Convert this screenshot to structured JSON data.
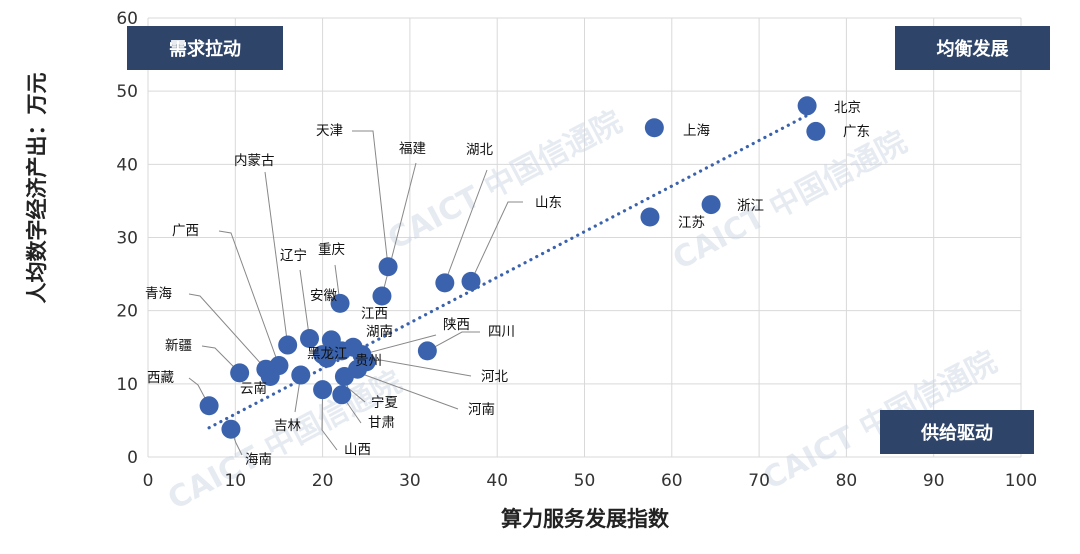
{
  "chart_data": {
    "type": "scatter",
    "xlabel": "算力服务发展指数",
    "ylabel": "人均数字经济产出：万元",
    "xlim": [
      0,
      100
    ],
    "ylim": [
      0,
      60
    ],
    "x_ticks": [
      0,
      10,
      20,
      30,
      40,
      50,
      60,
      70,
      80,
      90,
      100
    ],
    "y_ticks": [
      0,
      10,
      20,
      30,
      40,
      50,
      60
    ],
    "grid": true,
    "point_color": "#3b63ad",
    "trendline": {
      "style": "dotted",
      "color": "#3b63ad",
      "from": [
        7,
        4
      ],
      "to": [
        76,
        47
      ]
    },
    "quadrants": [
      {
        "label": "需求拉动",
        "position": "top-left"
      },
      {
        "label": "均衡发展",
        "position": "top-right"
      },
      {
        "label": "供给驱动",
        "position": "bottom-right"
      }
    ],
    "quadrant_color": "#2e4468",
    "watermark": "CAICT 中国信通院",
    "points": [
      {
        "name": "北京",
        "x": 75.5,
        "y": 48
      },
      {
        "name": "上海",
        "x": 58,
        "y": 45
      },
      {
        "name": "广东",
        "x": 76.5,
        "y": 44.5
      },
      {
        "name": "浙江",
        "x": 64.5,
        "y": 34.5
      },
      {
        "name": "江苏",
        "x": 57.5,
        "y": 32.8
      },
      {
        "name": "天津",
        "x": 27.5,
        "y": 26
      },
      {
        "name": "福建",
        "x": 26.8,
        "y": 22
      },
      {
        "name": "湖北",
        "x": 34,
        "y": 23.8
      },
      {
        "name": "山东",
        "x": 37,
        "y": 24
      },
      {
        "name": "重庆",
        "x": 22,
        "y": 21
      },
      {
        "name": "安徽",
        "x": 21,
        "y": 16
      },
      {
        "name": "江西",
        "x": 22.2,
        "y": 14.5
      },
      {
        "name": "湖南",
        "x": 23.5,
        "y": 15
      },
      {
        "name": "陕西",
        "x": 24.5,
        "y": 14
      },
      {
        "name": "四川",
        "x": 32,
        "y": 14.5
      },
      {
        "name": "辽宁",
        "x": 18.5,
        "y": 16.2
      },
      {
        "name": "内蒙古",
        "x": 16,
        "y": 15.3
      },
      {
        "name": "广西",
        "x": 15,
        "y": 12.5
      },
      {
        "name": "青海",
        "x": 13.5,
        "y": 12
      },
      {
        "name": "新疆",
        "x": 10.5,
        "y": 11.5
      },
      {
        "name": "黑龙江",
        "x": 20,
        "y": 14
      },
      {
        "name": "贵州",
        "x": 20.5,
        "y": 13.5
      },
      {
        "name": "云南",
        "x": 14,
        "y": 11
      },
      {
        "name": "吉林",
        "x": 17.5,
        "y": 11.2
      },
      {
        "name": "宁夏",
        "x": 22.5,
        "y": 11
      },
      {
        "name": "河北",
        "x": 25,
        "y": 13
      },
      {
        "name": "河南",
        "x": 24,
        "y": 12
      },
      {
        "name": "山西",
        "x": 20,
        "y": 9.2
      },
      {
        "name": "甘肃",
        "x": 22.2,
        "y": 8.5
      },
      {
        "name": "西藏",
        "x": 7,
        "y": 7
      },
      {
        "name": "海南",
        "x": 9.5,
        "y": 3.8
      }
    ]
  }
}
